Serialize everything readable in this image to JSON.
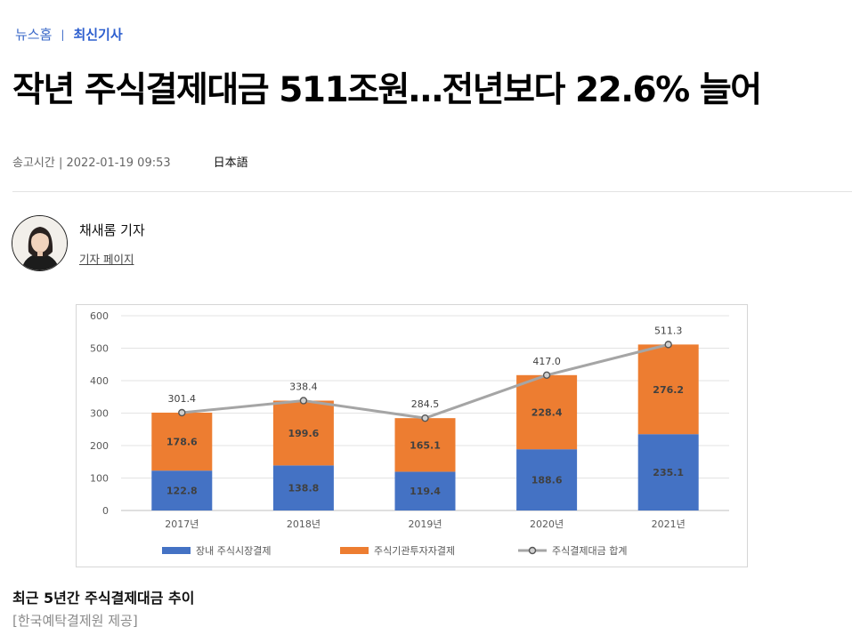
{
  "breadcrumb": {
    "home": "뉴스홈",
    "separator": "|",
    "current": "최신기사"
  },
  "article": {
    "headline": "작년 주식결제대금 511조원…전년보다 22.6% 늘어",
    "meta": {
      "sent_label": "송고시간 | 2022-01-19 09:53",
      "language": "日本語"
    }
  },
  "reporter": {
    "name": "채새롬 기자",
    "page_link": "기자 페이지"
  },
  "figure": {
    "caption": "최근 5년간 주식결제대금 추이",
    "credit": "[한국예탁결제원 제공]"
  },
  "chart_data": {
    "type": "bar",
    "stacked": true,
    "categories": [
      "2017년",
      "2018년",
      "2019년",
      "2020년",
      "2021년"
    ],
    "series": [
      {
        "name": "장내 주식시장결제",
        "color": "#4472c4",
        "values": [
          122.8,
          138.8,
          119.4,
          188.6,
          235.1
        ]
      },
      {
        "name": "주식기관투자자결제",
        "color": "#ed7d31",
        "values": [
          178.6,
          199.6,
          165.1,
          228.4,
          276.2
        ]
      }
    ],
    "line": {
      "name": "주식결제대금 합계",
      "color": "#a5a5a5",
      "values": [
        301.4,
        338.4,
        284.5,
        417.0,
        511.3
      ]
    },
    "total_labels": [
      "301.4",
      "338.4",
      "284.5",
      "417.0",
      "511.3"
    ],
    "stack_labels": [
      [
        "122.8",
        "138.8",
        "119.4",
        "188.6",
        "235.1"
      ],
      [
        "178.6",
        "199.6",
        "165.1",
        "228.4",
        "276.2"
      ]
    ],
    "yticks": [
      "0",
      "100",
      "200",
      "300",
      "400",
      "500",
      "600"
    ],
    "ylim": [
      0,
      600
    ],
    "grid": true,
    "legend_position": "bottom"
  }
}
